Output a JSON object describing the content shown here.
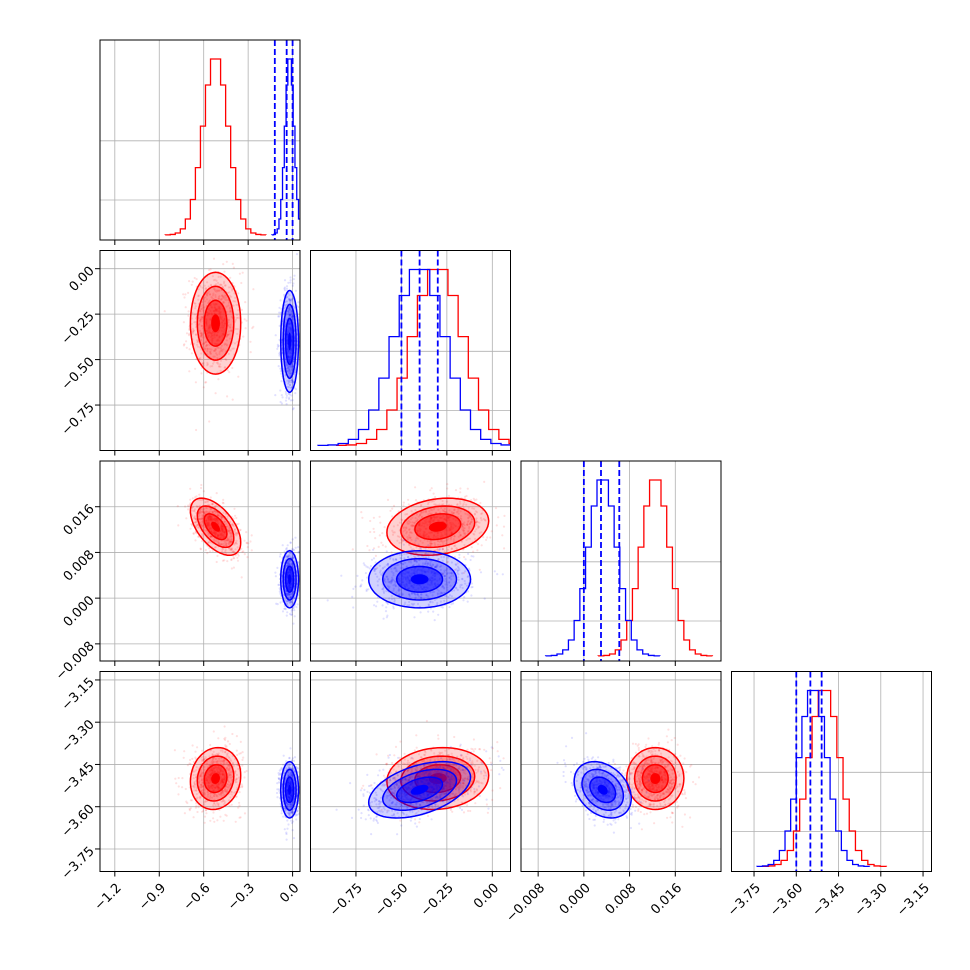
{
  "chart_data": {
    "type": "corner",
    "grid": true,
    "colors": {
      "series_a": "#ff0000",
      "series_b": "#0000ff",
      "grid": "#b0b0b0"
    },
    "parameters": [
      {
        "range": [
          -1.3,
          0.05
        ],
        "ticks": [
          -1.2,
          -0.9,
          -0.6,
          -0.3,
          0.0
        ],
        "tick_labels": [
          "−1.2",
          "−0.9",
          "−0.6",
          "−0.3",
          "0.0"
        ]
      },
      {
        "range": [
          -1.0,
          0.1
        ],
        "ticks": [
          -0.75,
          -0.5,
          -0.25,
          0.0
        ],
        "tick_labels": [
          "−0.75",
          "−0.50",
          "−0.25",
          "0.00"
        ]
      },
      {
        "range": [
          -0.011,
          0.024
        ],
        "ticks": [
          -0.008,
          0.0,
          0.008,
          0.016
        ],
        "tick_labels": [
          "−0.008",
          "0.000",
          "0.008",
          "0.016"
        ]
      },
      {
        "range": [
          -3.83,
          -3.12
        ],
        "ticks": [
          -3.75,
          -3.6,
          -3.45,
          -3.3,
          -3.15
        ],
        "tick_labels": [
          "−3.75",
          "−3.60",
          "−3.45",
          "−3.30",
          "−3.15"
        ]
      }
    ],
    "series": [
      {
        "name": "",
        "color": "#ff0000",
        "mean": [
          -0.52,
          -0.3,
          0.0125,
          -3.5
        ],
        "std": [
          0.085,
          0.14,
          0.0025,
          0.055
        ],
        "corr": [
          [
            0,
            1,
            0.0
          ],
          [
            0,
            2,
            -0.55
          ],
          [
            1,
            2,
            0.2
          ],
          [
            0,
            3,
            0.1
          ],
          [
            1,
            3,
            0.1
          ],
          [
            2,
            3,
            0.0
          ]
        ],
        "quantiles": null
      },
      {
        "name": "",
        "color": "#0000ff",
        "mean": [
          -0.02,
          -0.4,
          0.0033,
          -3.54
        ],
        "std": [
          0.03,
          0.14,
          0.0025,
          0.05
        ],
        "corr": [
          [
            0,
            1,
            0.0
          ],
          [
            0,
            2,
            0.0
          ],
          [
            1,
            2,
            0.0
          ],
          [
            0,
            3,
            0.0
          ],
          [
            1,
            3,
            0.45
          ],
          [
            2,
            3,
            -0.3
          ]
        ],
        "quantiles": [
          [
            -0.12,
            -0.04,
            0.0
          ],
          [
            -0.5,
            -0.4,
            -0.3
          ],
          [
            0.0,
            0.003,
            0.0062
          ],
          [
            -3.6,
            -3.55,
            -3.51
          ]
        ]
      }
    ]
  }
}
